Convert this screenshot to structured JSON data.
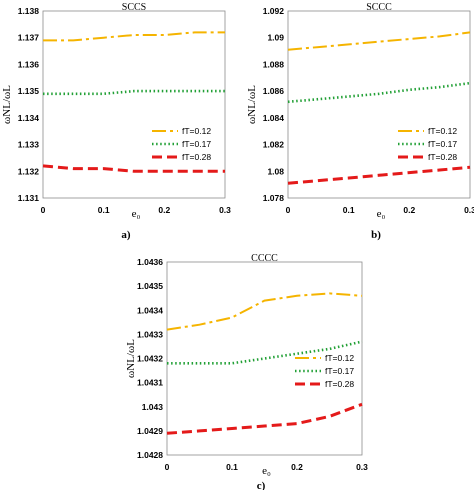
{
  "chart_data": [
    {
      "type": "line",
      "title": "SCCS",
      "caption": "a)",
      "xlabel": "e₀",
      "ylabel": "ωNL/ωL",
      "xlim": [
        0,
        0.3
      ],
      "ylim": [
        1.131,
        1.138
      ],
      "xticks": [
        0,
        0.1,
        0.2,
        0.3
      ],
      "xtick_labels": [
        "0",
        "0.1",
        "0.2",
        "0.3"
      ],
      "yticks": [
        1.131,
        1.132,
        1.133,
        1.134,
        1.135,
        1.136,
        1.137,
        1.138
      ],
      "ytick_labels": [
        "1.131",
        "1.132",
        "1.133",
        "1.134",
        "1.135",
        "1.136",
        "1.137",
        "1.138"
      ],
      "grid": false,
      "legend_position": "middle-right",
      "series": [
        {
          "name": "fT=0.12",
          "color": "#F5B400",
          "dash": "dashdot",
          "x": [
            0,
            0.05,
            0.1,
            0.15,
            0.2,
            0.25,
            0.3
          ],
          "y": [
            1.1369,
            1.1369,
            1.137,
            1.1371,
            1.1371,
            1.1372,
            1.1372
          ]
        },
        {
          "name": "fT=0.17",
          "color": "#22A036",
          "dash": "dotted",
          "x": [
            0,
            0.05,
            0.1,
            0.15,
            0.2,
            0.25,
            0.3
          ],
          "y": [
            1.1349,
            1.1349,
            1.1349,
            1.135,
            1.135,
            1.135,
            1.135
          ]
        },
        {
          "name": "fT=0.28",
          "color": "#E41A1A",
          "dash": "dashed",
          "x": [
            0,
            0.05,
            0.1,
            0.15,
            0.2,
            0.25,
            0.3
          ],
          "y": [
            1.1322,
            1.1321,
            1.1321,
            1.132,
            1.132,
            1.132,
            1.132
          ]
        }
      ]
    },
    {
      "type": "line",
      "title": "SCCC",
      "caption": "b)",
      "xlabel": "e₀",
      "ylabel": "ωNL/ωL",
      "xlim": [
        0,
        0.3
      ],
      "ylim": [
        1.078,
        1.092
      ],
      "xticks": [
        0,
        0.1,
        0.2,
        0.3
      ],
      "xtick_labels": [
        "0",
        "0.1",
        "0.2",
        "0.3"
      ],
      "yticks": [
        1.078,
        1.08,
        1.082,
        1.084,
        1.086,
        1.088,
        1.09,
        1.092
      ],
      "ytick_labels": [
        "1.078",
        "1.08",
        "1.082",
        "1.084",
        "1.086",
        "1.088",
        "1.09",
        "1.092"
      ],
      "grid": false,
      "legend_position": "middle-right",
      "series": [
        {
          "name": "fT=0.12",
          "color": "#F5B400",
          "dash": "dashdot",
          "x": [
            0,
            0.05,
            0.1,
            0.15,
            0.2,
            0.25,
            0.3
          ],
          "y": [
            1.0891,
            1.0893,
            1.0895,
            1.0897,
            1.0899,
            1.0901,
            1.0904
          ]
        },
        {
          "name": "fT=0.17",
          "color": "#22A036",
          "dash": "dotted",
          "x": [
            0,
            0.05,
            0.1,
            0.15,
            0.2,
            0.25,
            0.3
          ],
          "y": [
            1.0852,
            1.0854,
            1.0856,
            1.0858,
            1.0861,
            1.0863,
            1.0866
          ]
        },
        {
          "name": "fT=0.28",
          "color": "#E41A1A",
          "dash": "dashed",
          "x": [
            0,
            0.05,
            0.1,
            0.15,
            0.2,
            0.25,
            0.3
          ],
          "y": [
            1.0791,
            1.0793,
            1.0795,
            1.0797,
            1.0799,
            1.0801,
            1.0803
          ]
        }
      ]
    },
    {
      "type": "line",
      "title": "CCCC",
      "caption": "c)",
      "xlabel": "e₀",
      "ylabel": "ωNL/ωL",
      "xlim": [
        0,
        0.3
      ],
      "ylim": [
        1.0428,
        1.0436
      ],
      "xticks": [
        0,
        0.1,
        0.2,
        0.3
      ],
      "xtick_labels": [
        "0",
        "0.1",
        "0.2",
        "0.3"
      ],
      "yticks": [
        1.0428,
        1.0429,
        1.043,
        1.0431,
        1.0432,
        1.0433,
        1.0434,
        1.0435,
        1.0436
      ],
      "ytick_labels": [
        "1.0428",
        "1.0429",
        "1.043",
        "1.0431",
        "1.0432",
        "1.0433",
        "1.0434",
        "1.0435",
        "1.0436"
      ],
      "grid": false,
      "legend_position": "middle-right",
      "series": [
        {
          "name": "fT=0.12",
          "color": "#F5B400",
          "dash": "dashdot",
          "x": [
            0,
            0.05,
            0.1,
            0.15,
            0.2,
            0.25,
            0.3
          ],
          "y": [
            1.04332,
            1.04334,
            1.04337,
            1.04344,
            1.04346,
            1.04347,
            1.04346
          ]
        },
        {
          "name": "fT=0.17",
          "color": "#22A036",
          "dash": "dotted",
          "x": [
            0,
            0.05,
            0.1,
            0.15,
            0.2,
            0.25,
            0.3
          ],
          "y": [
            1.04318,
            1.04318,
            1.04318,
            1.0432,
            1.04322,
            1.04324,
            1.04327
          ]
        },
        {
          "name": "fT=0.28",
          "color": "#E41A1A",
          "dash": "dashed",
          "x": [
            0,
            0.05,
            0.1,
            0.15,
            0.2,
            0.25,
            0.3
          ],
          "y": [
            1.04289,
            1.0429,
            1.04291,
            1.04292,
            1.04293,
            1.04296,
            1.04301
          ]
        }
      ]
    }
  ]
}
